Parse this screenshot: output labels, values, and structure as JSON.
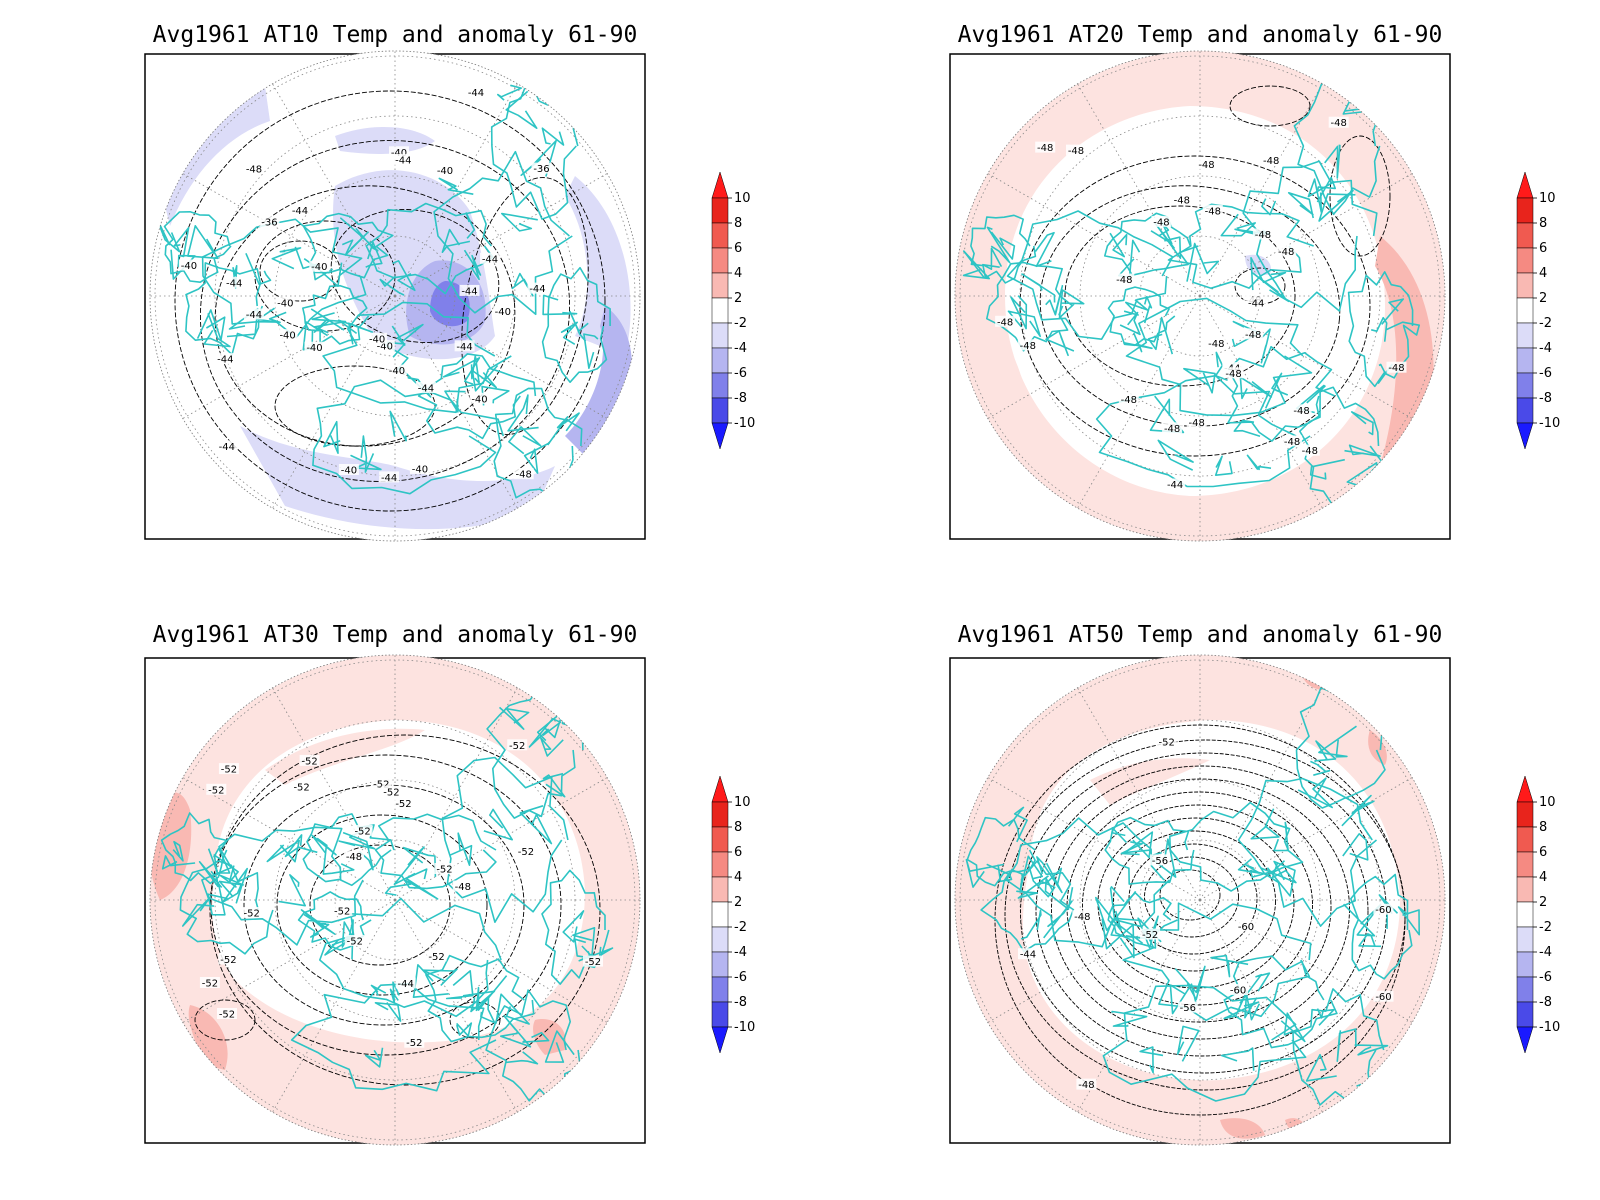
{
  "figure": {
    "colorbar": {
      "levels": [
        "10",
        "8",
        "6",
        "4",
        "2",
        "-2",
        "-4",
        "-6",
        "-8",
        "-10"
      ],
      "bin_colors": [
        "#e8241c",
        "#f05a50",
        "#f58a82",
        "#f9b9b3",
        "#fde3e0",
        "#ffffff",
        "#dcdcf8",
        "#b5b5f0",
        "#8080ea",
        "#4a4ae8",
        "#1e1ef0"
      ],
      "top_arrow_color": "#ff1a1a",
      "bottom_arrow_color": "#1a1aff"
    },
    "colors": {
      "coastline": "#2ec4c4",
      "grid": "#888888",
      "contour": "#000000"
    },
    "panels": [
      {
        "title": "Avg1961 AT10 Temp and anomaly 61-90",
        "level": "10 hPa",
        "anomaly_sign": "negative",
        "contour_labels": [
          "-44",
          "-44",
          "-40",
          "-40",
          "-40",
          "-40",
          "-40",
          "-36",
          "-36",
          "-40",
          "-40",
          "-44",
          "-44",
          "-40",
          "-44",
          "-40",
          "-40",
          "-44",
          "-40",
          "-44",
          "-44",
          "-44",
          "-40",
          "-44",
          "-44",
          "-48",
          "-44",
          "-48",
          "-40",
          "-40",
          "-44"
        ]
      },
      {
        "title": "Avg1961 AT20 Temp and anomaly 61-90",
        "level": "20 hPa",
        "anomaly_sign": "positive",
        "contour_labels": [
          "-48",
          "-48",
          "-48",
          "-48",
          "-48",
          "-48",
          "-48",
          "-48",
          "-48",
          "-48",
          "-44",
          "-44",
          "-44",
          "-48",
          "-48",
          "-48",
          "-48",
          "-48",
          "-48",
          "-48",
          "-48",
          "-48",
          "-48",
          "-48",
          "-48",
          "-48",
          "-48"
        ]
      },
      {
        "title": "Avg1961 AT30 Temp and anomaly 61-90",
        "level": "30 hPa",
        "anomaly_sign": "positive",
        "contour_labels": [
          "-52",
          "-48",
          "-52",
          "-52",
          "-52",
          "-52",
          "-52",
          "-52",
          "-52",
          "-52",
          "-52",
          "-52",
          "-44",
          "-48",
          "-52",
          "-52",
          "-52",
          "-52",
          "-52",
          "-52",
          "-52",
          "-52",
          "-52"
        ]
      },
      {
        "title": "Avg1961 AT50 Temp and anomaly 61-90",
        "level": "50 hPa",
        "anomaly_sign": "positive",
        "contour_labels": [
          "-56",
          "-52",
          "-48",
          "-60",
          "-44",
          "-48",
          "-52",
          "-56",
          "-60",
          "-60",
          "-60"
        ]
      }
    ]
  }
}
